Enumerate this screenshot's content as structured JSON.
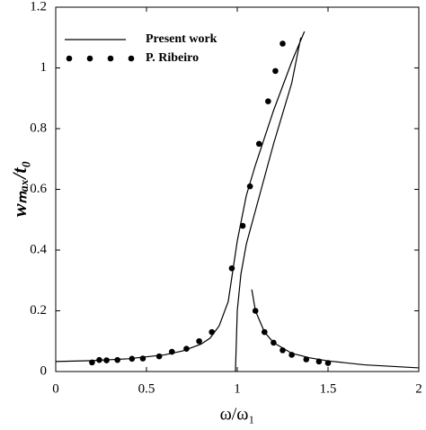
{
  "chart_data": {
    "type": "line",
    "xlabel": "ω/ω₁",
    "ylabel": "wₘₐₓ/t₀",
    "xlim": [
      0,
      2
    ],
    "xticks": [
      0,
      0.5,
      1,
      1.5,
      2
    ],
    "ylim": [
      0,
      1.2
    ],
    "yticks": [
      0,
      0.2,
      0.4,
      0.6,
      0.8,
      1,
      1.2
    ],
    "legend": "upper left",
    "series": [
      {
        "name": "Present work",
        "color": "#000000",
        "mode": "lines",
        "x": [
          0,
          0.2,
          0.4,
          0.6,
          0.7,
          0.8,
          0.85,
          0.9,
          0.95,
          1.0,
          1.05,
          1.1,
          1.2,
          1.3,
          1.37,
          null,
          0.99,
          1.0,
          1.02,
          1.05,
          1.1,
          1.2,
          1.3,
          1.35,
          null,
          1.08,
          1.1,
          1.15,
          1.2,
          1.3,
          1.4,
          1.5,
          1.7,
          2.0
        ],
        "values": [
          0.033,
          0.036,
          0.042,
          0.055,
          0.068,
          0.09,
          0.11,
          0.15,
          0.23,
          0.43,
          0.58,
          0.68,
          0.86,
          1.02,
          1.12,
          null,
          0,
          0.2,
          0.32,
          0.42,
          0.53,
          0.75,
          0.95,
          1.1,
          null,
          0.27,
          0.2,
          0.13,
          0.095,
          0.06,
          0.045,
          0.035,
          0.022,
          0.012
        ]
      },
      {
        "name": "P. Ribeiro",
        "color": "#000000",
        "mode": "markers",
        "x": [
          0.2,
          0.24,
          0.28,
          0.34,
          0.42,
          0.48,
          0.57,
          0.64,
          0.72,
          0.79,
          0.86,
          0.97,
          1.03,
          1.07,
          1.12,
          1.17,
          1.21,
          1.25,
          1.1,
          1.15,
          1.2,
          1.25,
          1.3,
          1.38,
          1.45,
          1.5
        ],
        "values": [
          0.03,
          0.038,
          0.037,
          0.038,
          0.042,
          0.043,
          0.05,
          0.065,
          0.075,
          0.1,
          0.13,
          0.34,
          0.48,
          0.61,
          0.75,
          0.89,
          0.99,
          1.08,
          0.2,
          0.13,
          0.095,
          0.07,
          0.055,
          0.04,
          0.033,
          0.028
        ]
      }
    ]
  }
}
